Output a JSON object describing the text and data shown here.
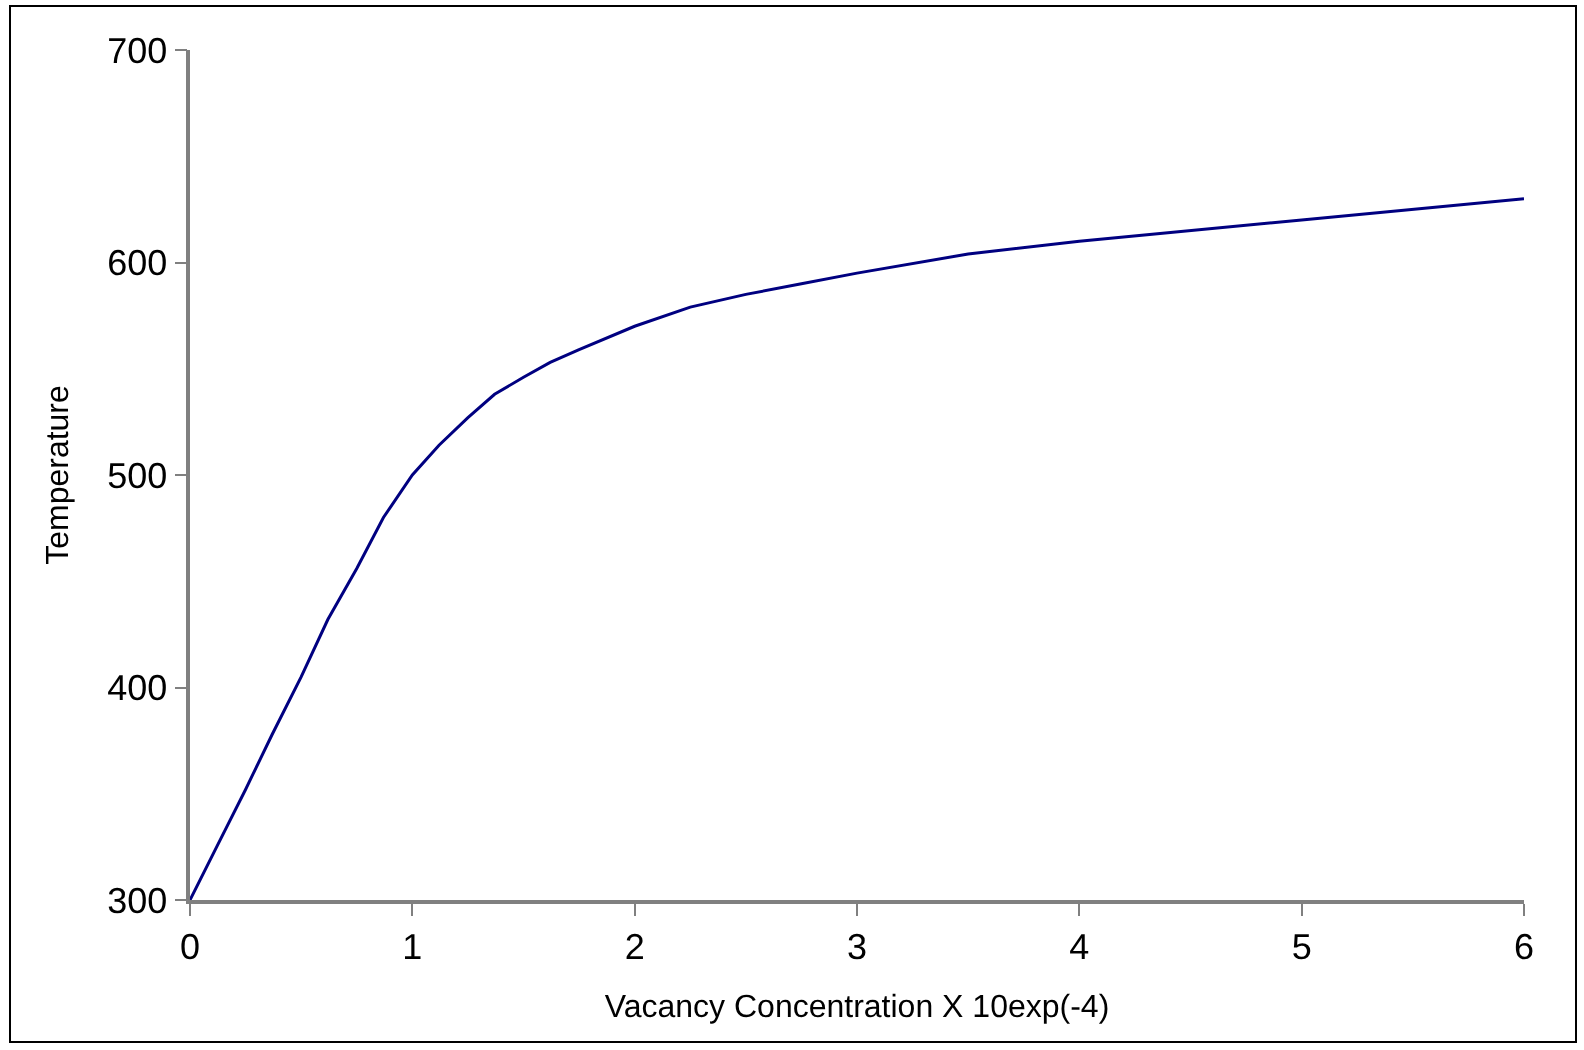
{
  "chart_data": {
    "type": "line",
    "xlabel": "Vacancy Concentration X 10exp(-4)",
    "ylabel": "Temperature",
    "x": [
      0,
      0.12,
      0.25,
      0.37,
      0.5,
      0.62,
      0.75,
      0.87,
      1.0,
      1.12,
      1.25,
      1.37,
      1.5,
      1.62,
      1.75,
      2.0,
      2.25,
      2.5,
      2.75,
      3.0,
      3.5,
      4.0,
      5.0,
      6.0
    ],
    "series": [
      {
        "color": "#000080",
        "values": [
          300,
          325,
          352,
          378,
          405,
          432,
          456,
          480,
          500,
          514,
          527,
          538,
          546,
          553,
          559,
          570,
          579,
          585,
          590,
          595,
          604,
          610,
          620,
          630
        ]
      }
    ],
    "xlim": [
      0,
      6
    ],
    "xticks": [
      0,
      1,
      2,
      3,
      4,
      5,
      6
    ],
    "ylim": [
      300,
      700
    ],
    "yticks": [
      300,
      400,
      500,
      600,
      700
    ],
    "grid": false,
    "marker": "none",
    "line_style": "solid"
  }
}
